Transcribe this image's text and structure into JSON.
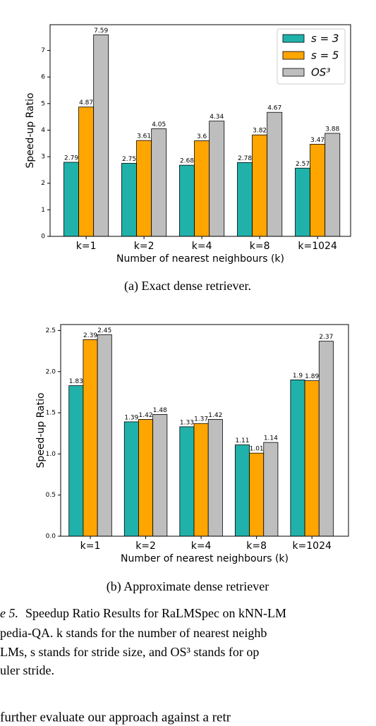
{
  "chart_data": [
    {
      "type": "bar",
      "ylabel": "Speed-up Ratio",
      "xlabel": "Number of nearest neighbours (k)",
      "categories": [
        "k=1",
        "k=2",
        "k=4",
        "k=8",
        "k=1024"
      ],
      "series": [
        {
          "name": "s = 3",
          "color": "#20b2aa",
          "values": [
            2.79,
            2.75,
            2.68,
            2.78,
            2.57
          ]
        },
        {
          "name": "s = 5",
          "color": "#ffa500",
          "values": [
            4.87,
            3.61,
            3.6,
            3.82,
            3.47
          ]
        },
        {
          "name": "OS³",
          "color": "#bebebe",
          "values": [
            7.59,
            4.05,
            4.34,
            4.67,
            3.88
          ]
        }
      ],
      "ylim": [
        0,
        7.97
      ],
      "yticks": [
        0,
        1,
        2,
        3,
        4,
        5,
        6,
        7
      ],
      "legend": "upper right",
      "caption": "(a) Exact dense retriever."
    },
    {
      "type": "bar",
      "ylabel": "Speed-up Ratio",
      "xlabel": "Number of nearest neighbours (k)",
      "categories": [
        "k=1",
        "k=2",
        "k=4",
        "k=8",
        "k=1024"
      ],
      "series": [
        {
          "name": "s = 3",
          "color": "#20b2aa",
          "values": [
            1.83,
            1.39,
            1.33,
            1.11,
            1.9
          ]
        },
        {
          "name": "s = 5",
          "color": "#ffa500",
          "values": [
            2.39,
            1.42,
            1.37,
            1.01,
            1.89
          ]
        },
        {
          "name": "OS³",
          "color": "#bebebe",
          "values": [
            2.45,
            1.48,
            1.42,
            1.14,
            2.37
          ]
        }
      ],
      "ylim": [
        0,
        2.5725
      ],
      "yticks": [
        {
          "value": 0,
          "label": "0.0"
        },
        0.5,
        {
          "value": 1,
          "label": "1.0"
        },
        1.5,
        {
          "value": 2,
          "label": "2.0"
        },
        2.5
      ],
      "caption": "(b) Approximate dense retriever"
    }
  ],
  "text": {
    "figure_label": "e 5.",
    "lines": [
      "Speedup Ratio Results for RaLMSpec on kNN-LM",
      "pedia-QA. k stands for the number of nearest neighb",
      "LMs, s stands for stride size, and OS³ stands for op",
      "uler stride.",
      "further evaluate our approach against a retr"
    ]
  }
}
